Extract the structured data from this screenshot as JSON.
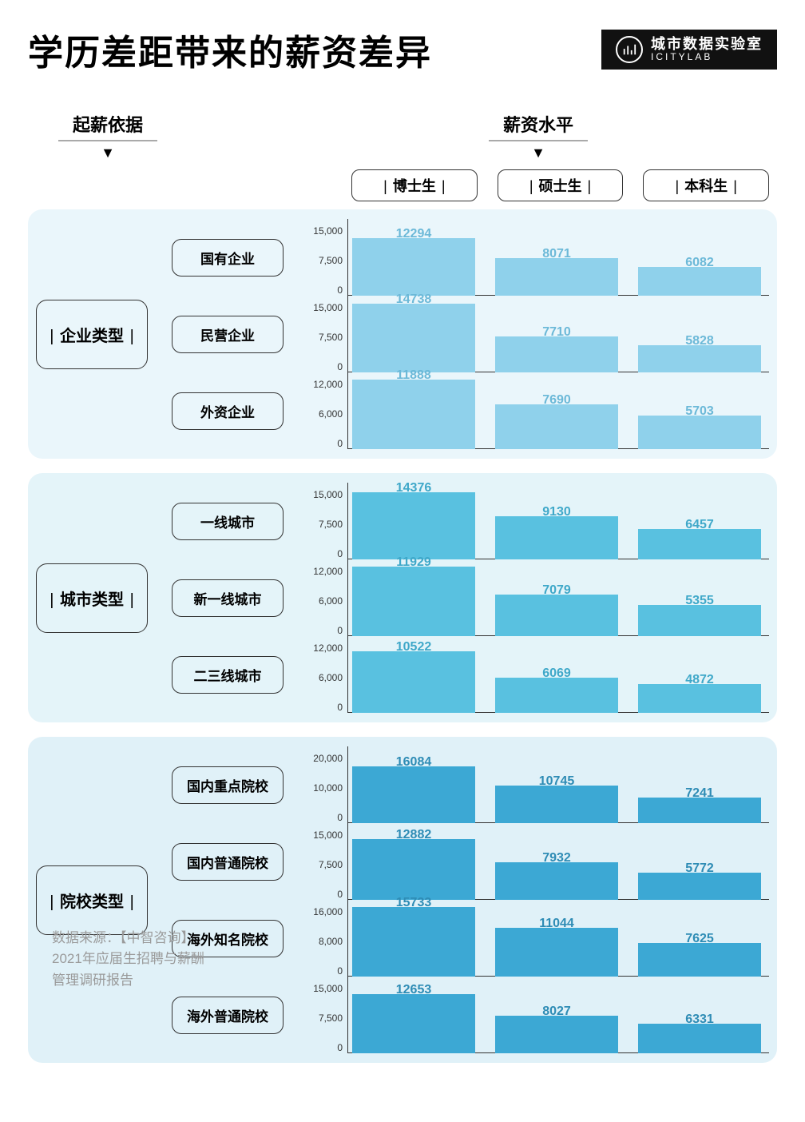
{
  "title": "学历差距带来的薪资差异",
  "logo": {
    "cn": "城市数据实验室",
    "en": "ICITYLAB"
  },
  "left_axis_label": "起薪依据",
  "right_axis_label": "薪资水平",
  "degree_headers": [
    "博士生",
    "硕士生",
    "本科生"
  ],
  "source": "数据来源：【中智咨询】\n2021年应届生招聘与薪酬\n管理调研报告",
  "style": {
    "section_radius": 18,
    "box_border_color": "#333333",
    "label_font_size": 20,
    "value_font_size": 16,
    "tick_font_size": 12
  },
  "sections": [
    {
      "name": "企业类型",
      "bg": "#eaf6fb",
      "bar_color": "#8fd1eb",
      "value_color": "#6cb9d8",
      "rows": [
        {
          "label": "国有企业",
          "ymax": 15000,
          "ticks": [
            "15,000",
            "7,500",
            "0"
          ],
          "values": [
            12294,
            8071,
            6082
          ]
        },
        {
          "label": "民营企业",
          "ymax": 15000,
          "ticks": [
            "15,000",
            "7,500",
            "0"
          ],
          "values": [
            14738,
            7710,
            5828
          ]
        },
        {
          "label": "外资企业",
          "ymax": 12000,
          "ticks": [
            "12,000",
            "6,000",
            "0"
          ],
          "values": [
            11888,
            7690,
            5703
          ]
        }
      ]
    },
    {
      "name": "城市类型",
      "bg": "#e4f4f9",
      "bar_color": "#59c1e0",
      "value_color": "#3fa8c9",
      "rows": [
        {
          "label": "一线城市",
          "ymax": 15000,
          "ticks": [
            "15,000",
            "7,500",
            "0"
          ],
          "values": [
            14376,
            9130,
            6457
          ]
        },
        {
          "label": "新一线城市",
          "ymax": 12000,
          "ticks": [
            "12,000",
            "6,000",
            "0"
          ],
          "values": [
            11929,
            7079,
            5355
          ]
        },
        {
          "label": "二三线城市",
          "ymax": 12000,
          "ticks": [
            "12,000",
            "6,000",
            "0"
          ],
          "values": [
            10522,
            6069,
            4872
          ]
        }
      ]
    },
    {
      "name": "院校类型",
      "bg": "#e0f1f8",
      "bar_color": "#3ca8d4",
      "value_color": "#2e8cb5",
      "rows": [
        {
          "label": "国内重点院校",
          "ymax": 20000,
          "ticks": [
            "20,000",
            "10,000",
            "0"
          ],
          "values": [
            16084,
            10745,
            7241
          ]
        },
        {
          "label": "国内普通院校",
          "ymax": 15000,
          "ticks": [
            "15,000",
            "7,500",
            "0"
          ],
          "values": [
            12882,
            7932,
            5772
          ]
        },
        {
          "label": "海外知名院校",
          "ymax": 16000,
          "ticks": [
            "16,000",
            "8,000",
            "0"
          ],
          "values": [
            15733,
            11044,
            7625
          ]
        },
        {
          "label": "海外普通院校",
          "ymax": 15000,
          "ticks": [
            "15,000",
            "7,500",
            "0"
          ],
          "values": [
            12653,
            8027,
            6331
          ]
        }
      ]
    }
  ]
}
